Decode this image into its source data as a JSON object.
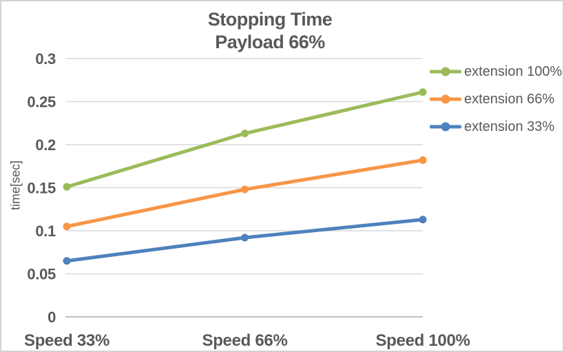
{
  "chart_data": {
    "type": "line",
    "title": "Stopping Time",
    "subtitle": "Payload 66%",
    "xlabel": "",
    "ylabel": "time[sec]",
    "categories": [
      "Speed 33%",
      "Speed 66%",
      "Speed 100%"
    ],
    "series": [
      {
        "name": "extension 100%",
        "color": "#9BBB59",
        "values": [
          0.151,
          0.213,
          0.261
        ]
      },
      {
        "name": "extension 66%",
        "color": "#F79646",
        "values": [
          0.105,
          0.148,
          0.182
        ]
      },
      {
        "name": "extension 33%",
        "color": "#4E81BD",
        "values": [
          0.065,
          0.092,
          0.113
        ]
      }
    ],
    "ylim": [
      0,
      0.3
    ],
    "yticks": [
      0,
      0.05,
      0.1,
      0.15,
      0.2,
      0.25,
      0.3
    ],
    "ytick_labels": [
      "0",
      "0.05",
      "0.1",
      "0.15",
      "0.2",
      "0.25",
      "0.3"
    ],
    "grid": true,
    "legend_position": "right",
    "colors": {
      "text": "#595959",
      "gridline": "#D9D9D9",
      "axis_line": "#BFBFBF",
      "frame_border": "#D3D3D3",
      "background": "#FFFFFF"
    }
  }
}
